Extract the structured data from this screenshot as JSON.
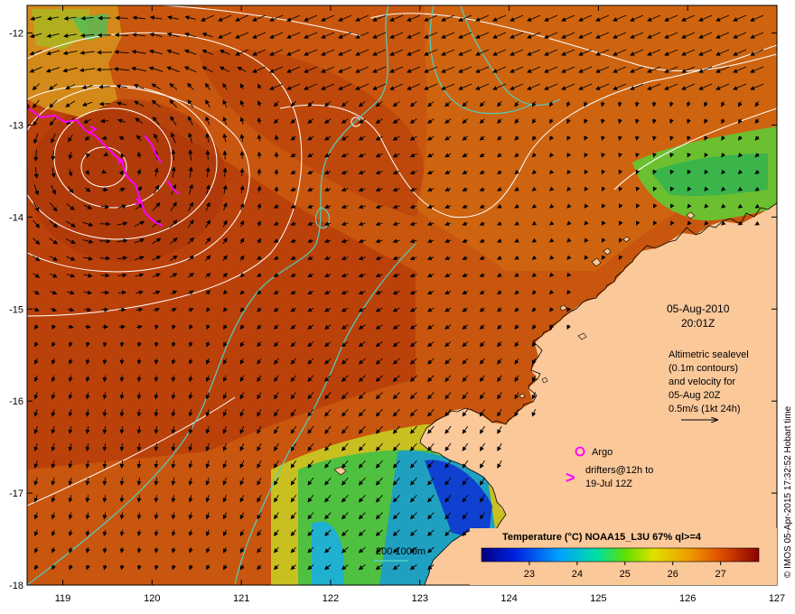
{
  "map": {
    "lon_ticks": [
      "119",
      "120",
      "121",
      "122",
      "123",
      "124",
      "125",
      "126",
      "127"
    ],
    "lat_ticks": [
      "-12",
      "-13",
      "-14",
      "-15",
      "-16",
      "-17",
      "-18"
    ],
    "lon_range": [
      118.6,
      127.0
    ],
    "lat_range": [
      -18.0,
      -11.7
    ]
  },
  "annotations": {
    "date": "05-Aug-2010",
    "time": "20:01Z",
    "altimetry_lines": [
      "Altimetric sealevel",
      "(0.1m contours)",
      "and velocity for",
      "05-Aug 20Z",
      "0.5m/s (1kt 24h)"
    ],
    "argo_label": "Argo",
    "drifters_lines": [
      "drifters@12h to",
      "19-Jul 12Z"
    ],
    "drifter_symbol": ">",
    "bathymetry_label": "200  1000m"
  },
  "colorbar": {
    "title": "Temperature (°C) NOAA15_L3U 67% ql>=4",
    "ticks": [
      "23",
      "24",
      "25",
      "26",
      "27"
    ],
    "tick_values": [
      23,
      24,
      25,
      26,
      27
    ],
    "range": [
      22.0,
      27.8
    ]
  },
  "credit": "© IMOS 05-Apr-2015 17:32:52 Hobart time",
  "colors": {
    "land": "#fbc89a",
    "sea_warm": "#c8520c",
    "sea_hot": "#b6380a",
    "contour": "#ffffff",
    "bathymetry": "#4fd1c5",
    "drifter": "#ff00ff"
  }
}
